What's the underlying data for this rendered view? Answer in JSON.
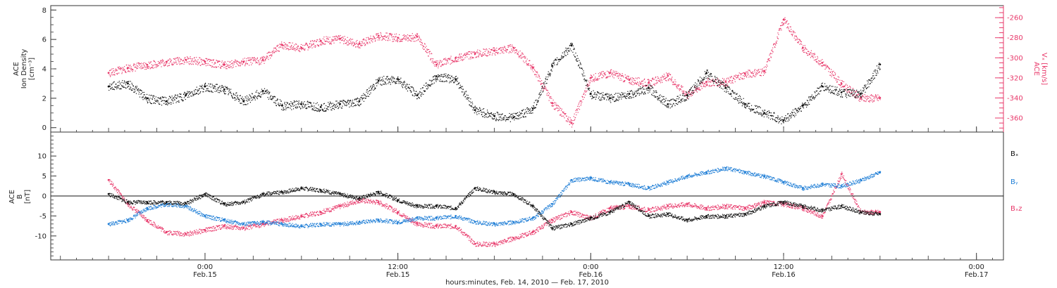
{
  "chart_data": [
    {
      "type": "scatter",
      "panel": "top",
      "ylabel_left": [
        "ACE",
        "Ion Density",
        "[cm⁻³]"
      ],
      "ylabel_right": [
        "ACE",
        "Vₓ [km/s]"
      ],
      "left_axis": {
        "ylim": [
          -0.3,
          8.3
        ],
        "ticks": [
          "0",
          "2",
          "4",
          "6",
          "8"
        ],
        "color": "#222222"
      },
      "right_axis": {
        "ylim": [
          -374,
          -248
        ],
        "ticks": [
          "-260",
          "-280",
          "-300",
          "-320",
          "-340",
          "-360"
        ],
        "color": "#e8386a"
      },
      "series": [
        {
          "name": "Ion Density",
          "axis": "left",
          "color": "#111111",
          "x": [
            -0.25,
            -0.2,
            -0.15,
            -0.1,
            -0.05,
            0.0,
            0.05,
            0.1,
            0.15,
            0.2,
            0.25,
            0.3,
            0.35,
            0.4,
            0.45,
            0.5,
            0.55,
            0.6,
            0.65,
            0.7,
            0.75,
            0.8,
            0.85,
            0.9,
            0.95,
            1.0,
            1.05,
            1.1,
            1.15,
            1.2,
            1.25,
            1.3,
            1.35,
            1.4,
            1.45,
            1.5,
            1.55,
            1.6,
            1.65,
            1.7,
            1.75
          ],
          "values": [
            2.8,
            3.0,
            2.0,
            1.8,
            2.2,
            2.8,
            2.6,
            1.8,
            2.5,
            1.5,
            1.6,
            1.4,
            1.6,
            1.8,
            3.2,
            3.3,
            2.2,
            3.5,
            3.3,
            1.2,
            0.8,
            0.7,
            1.3,
            4.2,
            5.6,
            2.3,
            2.0,
            2.3,
            2.7,
            1.6,
            2.2,
            3.7,
            2.7,
            1.6,
            1.0,
            0.5,
            1.5,
            2.8,
            2.4,
            2.3,
            4.3
          ]
        },
        {
          "name": "Vx",
          "axis": "right",
          "color": "#e8386a",
          "x": [
            -0.25,
            -0.2,
            -0.15,
            -0.1,
            -0.05,
            0.0,
            0.05,
            0.1,
            0.15,
            0.2,
            0.25,
            0.3,
            0.35,
            0.4,
            0.45,
            0.5,
            0.55,
            0.6,
            0.65,
            0.7,
            0.75,
            0.8,
            0.85,
            0.9,
            0.95,
            1.0,
            1.05,
            1.1,
            1.15,
            1.2,
            1.25,
            1.3,
            1.35,
            1.4,
            1.45,
            1.5,
            1.55,
            1.6,
            1.65,
            1.7,
            1.75
          ],
          "values": [
            -315,
            -310,
            -307,
            -304,
            -302,
            -304,
            -307,
            -304,
            -302,
            -287,
            -290,
            -283,
            -281,
            -286,
            -278,
            -280,
            -279,
            -307,
            -300,
            -296,
            -293,
            -290,
            -310,
            -345,
            -365,
            -320,
            -315,
            -322,
            -325,
            -318,
            -337,
            -324,
            -324,
            -316,
            -313,
            -262,
            -290,
            -305,
            -326,
            -340,
            -340
          ]
        }
      ]
    },
    {
      "type": "scatter",
      "panel": "bottom",
      "ylabel_left": [
        "ACE",
        "B",
        "[nT]"
      ],
      "ylim": [
        -16,
        16
      ],
      "yticks": [
        "10",
        "5",
        "0",
        "-5",
        "-10"
      ],
      "zero_line": true,
      "x_ticks": [
        {
          "time": "0:00",
          "date": "Feb.15"
        },
        {
          "time": "12:00",
          "date": "Feb.15"
        },
        {
          "time": "0:00",
          "date": "Feb.16"
        },
        {
          "time": "12:00",
          "date": "Feb.16"
        },
        {
          "time": "0:00",
          "date": "Feb.17"
        }
      ],
      "xlabel": "hours:minutes, Feb. 14, 2010 — Feb. 17, 2010",
      "legend": [
        {
          "label": "Bₓ",
          "color": "#111111"
        },
        {
          "label": "Bᵧ",
          "color": "#1f7ed6"
        },
        {
          "label": "Bₓz",
          "color": "#e8386a"
        }
      ],
      "series": [
        {
          "name": "Bx",
          "color": "#111111",
          "x": [
            -0.25,
            -0.2,
            -0.15,
            -0.1,
            -0.05,
            0.0,
            0.05,
            0.1,
            0.15,
            0.2,
            0.25,
            0.3,
            0.35,
            0.4,
            0.45,
            0.5,
            0.55,
            0.6,
            0.65,
            0.7,
            0.75,
            0.8,
            0.85,
            0.9,
            0.95,
            1.0,
            1.05,
            1.1,
            1.15,
            1.2,
            1.25,
            1.3,
            1.35,
            1.4,
            1.45,
            1.5,
            1.55,
            1.6,
            1.65,
            1.7,
            1.75
          ],
          "values": [
            0.5,
            -1.5,
            -1.5,
            -1.5,
            -1.8,
            0.5,
            -2.0,
            -1.5,
            0.5,
            1.0,
            2.0,
            1.5,
            0.5,
            -0.5,
            1.0,
            -1.0,
            -2.5,
            -2.5,
            -3.0,
            2.0,
            1.0,
            0.5,
            -2.5,
            -8.0,
            -7.0,
            -5.5,
            -4.0,
            -1.5,
            -5.0,
            -4.5,
            -6.0,
            -5.0,
            -5.0,
            -4.5,
            -2.5,
            -1.5,
            -2.5,
            -3.5,
            -2.5,
            -4.0,
            -4.5
          ]
        },
        {
          "name": "By",
          "color": "#1f7ed6",
          "x": [
            -0.25,
            -0.2,
            -0.15,
            -0.1,
            -0.05,
            0.0,
            0.05,
            0.1,
            0.15,
            0.2,
            0.25,
            0.3,
            0.35,
            0.4,
            0.45,
            0.5,
            0.55,
            0.6,
            0.65,
            0.7,
            0.75,
            0.8,
            0.85,
            0.9,
            0.95,
            1.0,
            1.05,
            1.1,
            1.15,
            1.2,
            1.25,
            1.3,
            1.35,
            1.4,
            1.45,
            1.5,
            1.55,
            1.6,
            1.65,
            1.7,
            1.75
          ],
          "values": [
            -7.0,
            -6.0,
            -3.0,
            -2.0,
            -2.5,
            -5.0,
            -6.0,
            -7.0,
            -6.5,
            -7.0,
            -7.5,
            -7.0,
            -7.0,
            -6.5,
            -6.0,
            -6.5,
            -5.5,
            -5.5,
            -5.0,
            -6.5,
            -7.0,
            -6.5,
            -5.5,
            -2.0,
            4.0,
            4.5,
            3.5,
            3.0,
            2.0,
            3.5,
            5.0,
            6.0,
            7.0,
            6.0,
            5.0,
            3.5,
            2.0,
            3.0,
            2.5,
            4.0,
            6.0
          ]
        },
        {
          "name": "Bz",
          "color": "#e8386a",
          "x": [
            -0.25,
            -0.2,
            -0.15,
            -0.1,
            -0.05,
            0.0,
            0.05,
            0.1,
            0.15,
            0.2,
            0.25,
            0.3,
            0.35,
            0.4,
            0.45,
            0.5,
            0.55,
            0.6,
            0.65,
            0.7,
            0.75,
            0.8,
            0.85,
            0.9,
            0.95,
            1.0,
            1.05,
            1.1,
            1.15,
            1.2,
            1.25,
            1.3,
            1.35,
            1.4,
            1.45,
            1.5,
            1.55,
            1.6,
            1.65,
            1.7,
            1.75
          ],
          "values": [
            4.0,
            -2.0,
            -6.0,
            -9.0,
            -9.5,
            -8.5,
            -7.5,
            -8.0,
            -7.0,
            -6.0,
            -5.0,
            -4.0,
            -2.5,
            -1.0,
            -1.5,
            -4.0,
            -7.0,
            -7.5,
            -7.5,
            -12.0,
            -12.0,
            -10.5,
            -9.0,
            -6.0,
            -4.0,
            -5.5,
            -3.0,
            -2.5,
            -3.5,
            -2.5,
            -2.0,
            -3.0,
            -2.5,
            -3.0,
            -1.5,
            -2.0,
            -3.0,
            -5.0,
            5.5,
            -4.0,
            -4.0
          ]
        }
      ]
    }
  ]
}
